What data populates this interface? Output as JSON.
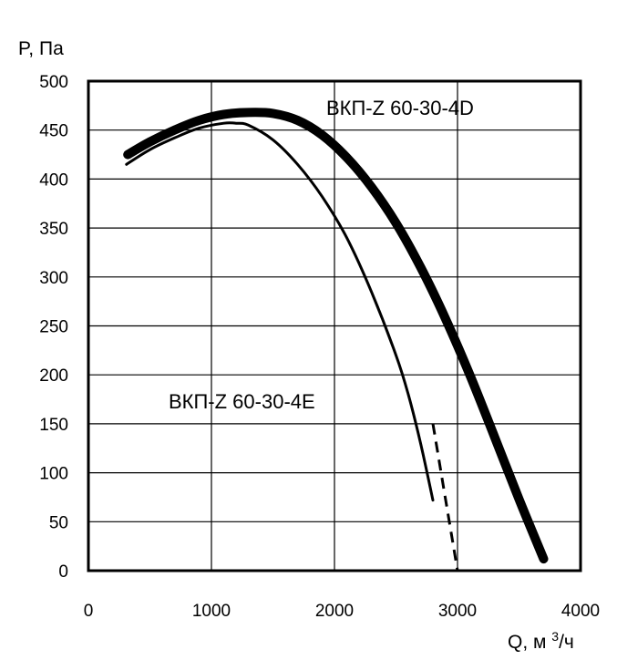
{
  "chart_data": {
    "type": "line",
    "ylabel": "P, Па",
    "xlabel_prefix": "Q, м ",
    "xlabel_sup": "3",
    "xlabel_suffix": "/ч",
    "xlim": [
      0,
      4000
    ],
    "ylim": [
      0,
      500
    ],
    "x_ticks": [
      0,
      1000,
      2000,
      3000,
      4000
    ],
    "y_ticks": [
      0,
      50,
      100,
      150,
      200,
      250,
      300,
      350,
      400,
      450,
      500
    ],
    "grid": true,
    "series": [
      {
        "name": "ВКП-Z 60-30-4D",
        "color": "#000000",
        "style": "thick",
        "x": [
          320,
          500,
          700,
          900,
          1100,
          1300,
          1500,
          1700,
          1900,
          2100,
          2300,
          2500,
          2700,
          2900,
          3100,
          3300,
          3500,
          3700
        ],
        "y": [
          425,
          438,
          450,
          460,
          466,
          468,
          467,
          460,
          445,
          422,
          392,
          355,
          310,
          258,
          200,
          137,
          73,
          12
        ]
      },
      {
        "name": "ВКП-Z 60-30-4E",
        "color": "#000000",
        "style": "thin",
        "x": [
          310,
          500,
          700,
          900,
          1100,
          1200,
          1300,
          1500,
          1700,
          1900,
          2100,
          2300,
          2500,
          2600,
          2700,
          2800
        ],
        "y": [
          415,
          430,
          442,
          452,
          457,
          457,
          455,
          440,
          415,
          382,
          340,
          285,
          220,
          180,
          130,
          72
        ],
        "dashed_x": [
          2800,
          2900,
          3000
        ],
        "dashed_y": [
          150,
          75,
          0
        ]
      }
    ]
  }
}
